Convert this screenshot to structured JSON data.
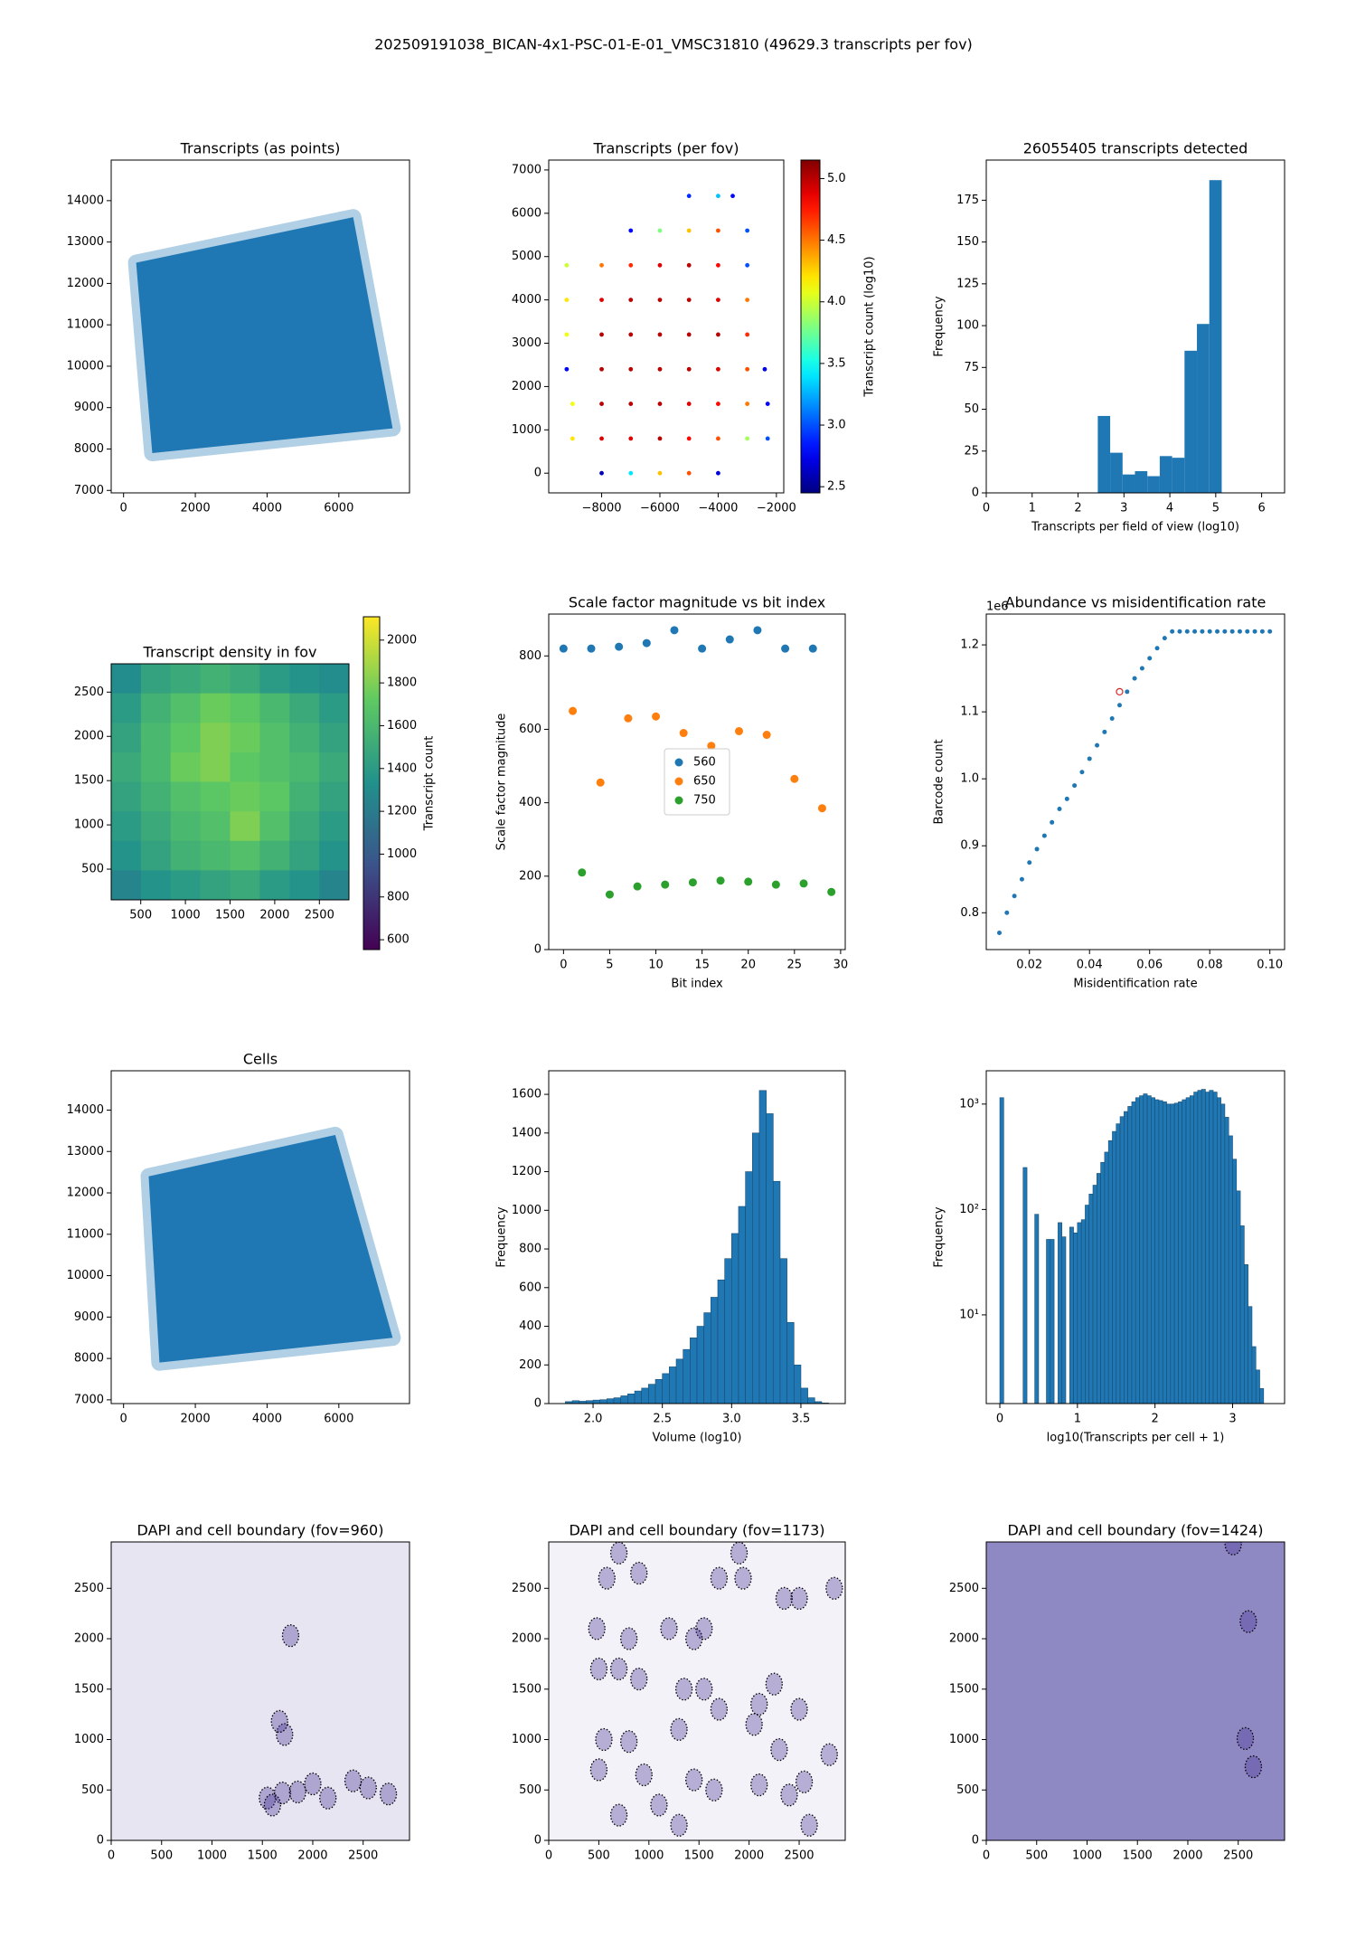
{
  "title": "202509191038_BICAN-4x1-PSC-01-E-01_VMSC31810 (49629.3 transcripts per fov)",
  "chart_data": [
    {
      "type": "polygon",
      "title": "Transcripts (as points)",
      "color": "#1f77b4",
      "x": [
        350,
        6400,
        7500,
        800
      ],
      "y": [
        12500,
        13600,
        8500,
        7900
      ],
      "xlim": [
        -345,
        7970
      ],
      "ylim": [
        6940,
        14980
      ],
      "xticks": [
        0,
        2000,
        4000,
        6000
      ],
      "yticks": [
        7000,
        8000,
        9000,
        10000,
        11000,
        12000,
        13000,
        14000
      ]
    },
    {
      "type": "scatter",
      "title": "Transcripts (per fov)",
      "colormap": "jet",
      "x": [
        -8000,
        -7000,
        -6000,
        -5000,
        -4000,
        -9000,
        -8000,
        -7000,
        -6000,
        -5000,
        -4000,
        -3000,
        -2300,
        -9000,
        -8000,
        -7000,
        -6000,
        -5000,
        -4000,
        -3000,
        -2300,
        -9200,
        -8000,
        -7000,
        -6000,
        -5000,
        -4000,
        -3000,
        -2400,
        -9200,
        -8000,
        -7000,
        -6000,
        -5000,
        -4000,
        -3000,
        -9200,
        -8000,
        -7000,
        -6000,
        -5000,
        -4000,
        -3000,
        -9200,
        -8000,
        -7000,
        -6000,
        -5000,
        -4000,
        -3000,
        -7000,
        -6000,
        -5000,
        -4000,
        -3000,
        -5000,
        -4000,
        -3500
      ],
      "y": [
        0,
        0,
        0,
        0,
        0,
        800,
        800,
        800,
        800,
        800,
        800,
        800,
        800,
        1600,
        1600,
        1600,
        1600,
        1600,
        1600,
        1600,
        1600,
        2400,
        2400,
        2400,
        2400,
        2400,
        2400,
        2400,
        2400,
        3200,
        3200,
        3200,
        3200,
        3200,
        3200,
        3200,
        4000,
        4000,
        4000,
        4000,
        4000,
        4000,
        4000,
        4800,
        4800,
        4800,
        4800,
        4800,
        4800,
        4800,
        5600,
        5600,
        5600,
        5600,
        5600,
        6400,
        6400,
        6400
      ],
      "values": [
        2.6,
        3.4,
        4.3,
        4.6,
        2.7,
        4.2,
        4.9,
        4.9,
        5.0,
        4.8,
        4.6,
        3.9,
        3.0,
        4.1,
        5.0,
        5.0,
        5.0,
        4.9,
        4.8,
        4.5,
        2.8,
        2.8,
        5.0,
        5.0,
        5.0,
        5.0,
        4.9,
        4.6,
        2.7,
        4.1,
        5.0,
        5.0,
        5.0,
        5.0,
        5.0,
        4.7,
        4.2,
        4.9,
        5.0,
        5.0,
        5.0,
        4.9,
        4.5,
        4.0,
        4.5,
        4.7,
        4.9,
        5.0,
        4.8,
        3.0,
        2.8,
        3.8,
        4.3,
        4.6,
        3.0,
        2.9,
        3.3,
        2.8
      ],
      "xlim": [
        -9817,
        -1747
      ],
      "ylim": [
        -455,
        7228
      ],
      "xticks": [
        {
          "value": -8000,
          "label": "−8000"
        },
        {
          "value": -6000,
          "label": "−6000"
        },
        {
          "value": -4000,
          "label": "−4000"
        },
        {
          "value": -2000,
          "label": "−2000"
        }
      ],
      "yticks": [
        0,
        1000,
        2000,
        3000,
        4000,
        5000,
        6000,
        7000
      ],
      "clim": [
        2.45,
        5.15
      ],
      "clabel": "Transcript count (log10)",
      "cticks": [
        2.5,
        {
          "value": 3,
          "label": "3.0"
        },
        3.5,
        {
          "value": 4,
          "label": "4.0"
        },
        4.5,
        {
          "value": 5,
          "label": "5.0"
        }
      ]
    },
    {
      "type": "hist",
      "title": "26055405 transcripts detected",
      "color": "#1f77b4",
      "bins": [
        2.43,
        2.7,
        2.97,
        3.24,
        3.51,
        3.78,
        4.05,
        4.32,
        4.59,
        4.86,
        5.13
      ],
      "counts": [
        46,
        24,
        11,
        13,
        10,
        22,
        21,
        85,
        101,
        187
      ],
      "xlabel": "Transcripts per field of view (log10)",
      "ylabel": "Frequency",
      "xlim": [
        0,
        6.5
      ],
      "ylim": [
        0,
        199
      ],
      "xticks": [
        0,
        1,
        2,
        3,
        4,
        5,
        6
      ],
      "yticks": [
        0,
        25,
        50,
        75,
        100,
        125,
        150,
        175
      ]
    },
    {
      "type": "heatmap",
      "title": "Transcript density in fov",
      "colormap": "viridis",
      "z": [
        [
          1300,
          1450,
          1500,
          1550,
          1500,
          1400,
          1350,
          1300
        ],
        [
          1400,
          1550,
          1650,
          1750,
          1700,
          1600,
          1500,
          1400
        ],
        [
          1450,
          1600,
          1700,
          1800,
          1750,
          1650,
          1550,
          1450
        ],
        [
          1500,
          1600,
          1750,
          1800,
          1700,
          1650,
          1600,
          1500
        ],
        [
          1450,
          1550,
          1650,
          1700,
          1750,
          1700,
          1550,
          1450
        ],
        [
          1400,
          1500,
          1600,
          1650,
          1800,
          1650,
          1500,
          1400
        ],
        [
          1350,
          1450,
          1550,
          1600,
          1650,
          1550,
          1450,
          1350
        ],
        [
          1250,
          1350,
          1400,
          1450,
          1500,
          1400,
          1350,
          1250
        ]
      ],
      "xlim": [
        169,
        2831
      ],
      "ylim": [
        153,
        2820
      ],
      "xticks": [
        500,
        1000,
        1500,
        2000,
        2500
      ],
      "yticks": [
        500,
        1000,
        1500,
        2000,
        2500
      ],
      "clim": [
        554,
        2109
      ],
      "clabel": "Transcript count",
      "cticks": [
        600,
        800,
        1000,
        1200,
        1400,
        1600,
        1800,
        2000
      ]
    },
    {
      "type": "scatter",
      "title": "Scale factor magnitude vs bit index",
      "legend": "center",
      "series": [
        {
          "name": "560",
          "color": "#1f77b4",
          "x": [
            0,
            3,
            6,
            9,
            12,
            15,
            18,
            21,
            24,
            27
          ],
          "y": [
            820,
            820,
            825,
            835,
            870,
            820,
            845,
            870,
            820,
            820
          ]
        },
        {
          "name": "650",
          "color": "#ff7f0e",
          "x": [
            1,
            4,
            7,
            10,
            13,
            16,
            19,
            22,
            25,
            28
          ],
          "y": [
            650,
            455,
            630,
            635,
            590,
            555,
            595,
            585,
            465,
            385
          ]
        },
        {
          "name": "750",
          "color": "#2ca02c",
          "x": [
            2,
            5,
            8,
            11,
            14,
            17,
            20,
            23,
            26,
            29
          ],
          "y": [
            210,
            150,
            172,
            177,
            183,
            188,
            185,
            177,
            180,
            157
          ]
        }
      ],
      "xlabel": "Bit index",
      "ylabel": "Scale factor magnitude",
      "xlim": [
        -1.6,
        30.5
      ],
      "ylim": [
        0,
        914
      ],
      "xticks": [
        0,
        5,
        10,
        15,
        20,
        25,
        30
      ],
      "yticks": [
        0,
        200,
        400,
        600,
        800
      ]
    },
    {
      "type": "scatter",
      "title": "Abundance vs misidentification rate",
      "color": "#1f77b4",
      "x": [
        0.01,
        0.0125,
        0.015,
        0.0175,
        0.02,
        0.0225,
        0.025,
        0.0275,
        0.03,
        0.0325,
        0.035,
        0.0375,
        0.04,
        0.0425,
        0.045,
        0.0475,
        0.05,
        0.0525,
        0.055,
        0.0575,
        0.06,
        0.0625,
        0.065,
        0.0675,
        0.07,
        0.0725,
        0.075,
        0.0775,
        0.08,
        0.0825,
        0.085,
        0.0875,
        0.09,
        0.0925,
        0.095,
        0.0975,
        0.1
      ],
      "y": [
        0.77,
        0.8,
        0.825,
        0.85,
        0.875,
        0.895,
        0.915,
        0.935,
        0.955,
        0.97,
        0.99,
        1.01,
        1.03,
        1.05,
        1.07,
        1.09,
        1.11,
        1.13,
        1.15,
        1.165,
        1.18,
        1.195,
        1.21,
        1.22,
        1.22,
        1.22,
        1.22,
        1.22,
        1.22,
        1.22,
        1.22,
        1.22,
        1.22,
        1.22,
        1.22,
        1.22,
        1.22
      ],
      "marker": {
        "x": 0.05,
        "y": 1.13,
        "color": "#d62728"
      },
      "y_offset_label": "1e6",
      "xlabel": "Misidentification rate",
      "ylabel": "Barcode count",
      "xlim": [
        0.00564,
        0.1049
      ],
      "ylim": [
        0.745,
        1.246
      ],
      "xticks": [
        0.02,
        0.04,
        0.06,
        0.08,
        {
          "value": 0.1,
          "label": "0.10"
        }
      ],
      "yticks": [
        0.8,
        0.9,
        {
          "value": 1,
          "label": "1.0"
        },
        1.1,
        1.2
      ]
    },
    {
      "type": "polygon",
      "title": "Cells",
      "color": "#1f77b4",
      "x": [
        700,
        5900,
        7500,
        1000
      ],
      "y": [
        12400,
        13400,
        8500,
        7900
      ],
      "xlim": [
        -345,
        7970
      ],
      "ylim": [
        6910,
        14950
      ],
      "xticks": [
        0,
        2000,
        4000,
        6000
      ],
      "yticks": [
        7000,
        8000,
        9000,
        10000,
        11000,
        12000,
        13000,
        14000
      ]
    },
    {
      "type": "hist",
      "color": "#1f77b4",
      "edgecolor": "#1a4d73",
      "bins": [
        1.8,
        1.85,
        1.9,
        1.95,
        2,
        2.05,
        2.1,
        2.15,
        2.2,
        2.25,
        2.3,
        2.35,
        2.4,
        2.45,
        2.5,
        2.55,
        2.6,
        2.65,
        2.7,
        2.75,
        2.8,
        2.85,
        2.9,
        2.95,
        3,
        3.05,
        3.1,
        3.15,
        3.2,
        3.25,
        3.3,
        3.35,
        3.4,
        3.45,
        3.5,
        3.55,
        3.6,
        3.65,
        3.7
      ],
      "counts": [
        10,
        15,
        12,
        15,
        18,
        20,
        25,
        30,
        40,
        50,
        65,
        80,
        100,
        125,
        155,
        190,
        230,
        280,
        340,
        400,
        470,
        550,
        640,
        750,
        880,
        1020,
        1200,
        1400,
        1620,
        1500,
        1150,
        750,
        420,
        200,
        80,
        30,
        10,
        3
      ],
      "xlabel": "Volume (log10)",
      "ylabel": "Frequency",
      "xlim": [
        1.68,
        3.82
      ],
      "ylim": [
        0,
        1722
      ],
      "xticks": [
        {
          "value": 2,
          "label": "2.0"
        },
        2.5,
        {
          "value": 3,
          "label": "3.0"
        },
        3.5
      ],
      "yticks": [
        0,
        200,
        400,
        600,
        800,
        1000,
        1200,
        1400,
        1600
      ]
    },
    {
      "type": "hist",
      "color": "#1f77b4",
      "edgecolor": "#1a4d73",
      "yscale": "log",
      "bins": [
        0,
        0.05,
        0.1,
        0.15,
        0.2,
        0.25,
        0.3,
        0.35,
        0.4,
        0.45,
        0.5,
        0.55,
        0.6,
        0.65,
        0.7,
        0.75,
        0.8,
        0.85,
        0.9,
        0.95,
        1,
        1.05,
        1.1,
        1.15,
        1.2,
        1.25,
        1.3,
        1.35,
        1.4,
        1.45,
        1.5,
        1.55,
        1.6,
        1.65,
        1.7,
        1.75,
        1.8,
        1.85,
        1.9,
        1.95,
        2,
        2.05,
        2.1,
        2.15,
        2.2,
        2.25,
        2.3,
        2.35,
        2.4,
        2.45,
        2.5,
        2.55,
        2.6,
        2.65,
        2.7,
        2.75,
        2.8,
        2.85,
        2.9,
        2.95,
        3,
        3.05,
        3.1,
        3.15,
        3.2,
        3.25,
        3.3,
        3.35,
        3.4
      ],
      "counts": [
        1150,
        null,
        null,
        null,
        null,
        null,
        250,
        null,
        null,
        90,
        null,
        null,
        52,
        52,
        null,
        75,
        55,
        null,
        68,
        60,
        75,
        80,
        110,
        140,
        170,
        220,
        280,
        350,
        450,
        550,
        650,
        760,
        850,
        950,
        1050,
        1150,
        1200,
        1250,
        1200,
        1150,
        1100,
        1080,
        1050,
        1000,
        1000,
        1020,
        1050,
        1100,
        1150,
        1200,
        1300,
        1350,
        1380,
        1300,
        1350,
        1300,
        1150,
        1000,
        750,
        500,
        300,
        150,
        70,
        30,
        12,
        5,
        3,
        2
      ],
      "xlabel": "log10(Transcripts per cell + 1)",
      "ylabel": "Frequency",
      "xlim": [
        -0.175,
        3.67
      ],
      "ylim": [
        1.44,
        2070
      ],
      "xticks": [
        0,
        1,
        2,
        3
      ],
      "yticks": [
        {
          "value": 10,
          "label": "10¹"
        },
        {
          "value": 100,
          "label": "10²"
        },
        {
          "value": 1000,
          "label": "10³"
        }
      ]
    },
    {
      "type": "image",
      "title": "DAPI and cell boundary (fov=960)",
      "background": "#e7e5f1",
      "cells": {
        "x": [
          1780,
          1720,
          1670,
          1550,
          1700,
          1850,
          2000,
          2150,
          2400,
          2550,
          2750,
          1600
        ],
        "y": [
          2030,
          1050,
          1180,
          420,
          470,
          480,
          560,
          420,
          590,
          520,
          460,
          350
        ]
      },
      "xlim": [
        0,
        2960
      ],
      "ylim": [
        0,
        2960
      ],
      "xticks": [
        0,
        500,
        1000,
        1500,
        2000,
        2500
      ],
      "yticks": [
        0,
        500,
        1000,
        1500,
        2000,
        2500
      ]
    },
    {
      "type": "image",
      "title": "DAPI and cell boundary (fov=1173)",
      "background": "#f3f2f8",
      "cells": {
        "x": [
          700,
          900,
          580,
          1700,
          1900,
          1940,
          2350,
          2500,
          2850,
          480,
          800,
          1200,
          1550,
          1450,
          500,
          700,
          900,
          1350,
          1550,
          1700,
          2100,
          2250,
          2500,
          550,
          800,
          1300,
          2050,
          2300,
          2550,
          500,
          950,
          1450,
          1650,
          2100,
          2400,
          700,
          1100,
          1300,
          2600,
          2800
        ],
        "y": [
          2850,
          2650,
          2600,
          2600,
          2850,
          2600,
          2400,
          2400,
          2500,
          2100,
          2000,
          2100,
          2100,
          2000,
          1700,
          1700,
          1600,
          1500,
          1500,
          1300,
          1350,
          1550,
          1300,
          1000,
          980,
          1100,
          1150,
          900,
          580,
          700,
          650,
          600,
          500,
          550,
          450,
          250,
          350,
          150,
          150,
          850
        ]
      },
      "xlim": [
        0,
        2960
      ],
      "ylim": [
        0,
        2960
      ],
      "xticks": [
        0,
        500,
        1000,
        1500,
        2000,
        2500
      ],
      "yticks": [
        0,
        500,
        1000,
        1500,
        2000,
        2500
      ]
    },
    {
      "type": "image",
      "title": "DAPI and cell boundary (fov=1424)",
      "background": "#8f89c3",
      "cells": {
        "x": [
          2450,
          2600,
          2570,
          2650
        ],
        "y": [
          2940,
          2170,
          1010,
          730
        ]
      },
      "xlim": [
        0,
        2960
      ],
      "ylim": [
        0,
        2960
      ],
      "xticks": [
        0,
        500,
        1000,
        1500,
        2000,
        2500
      ],
      "yticks": [
        0,
        500,
        1000,
        1500,
        2000,
        2500
      ]
    }
  ]
}
